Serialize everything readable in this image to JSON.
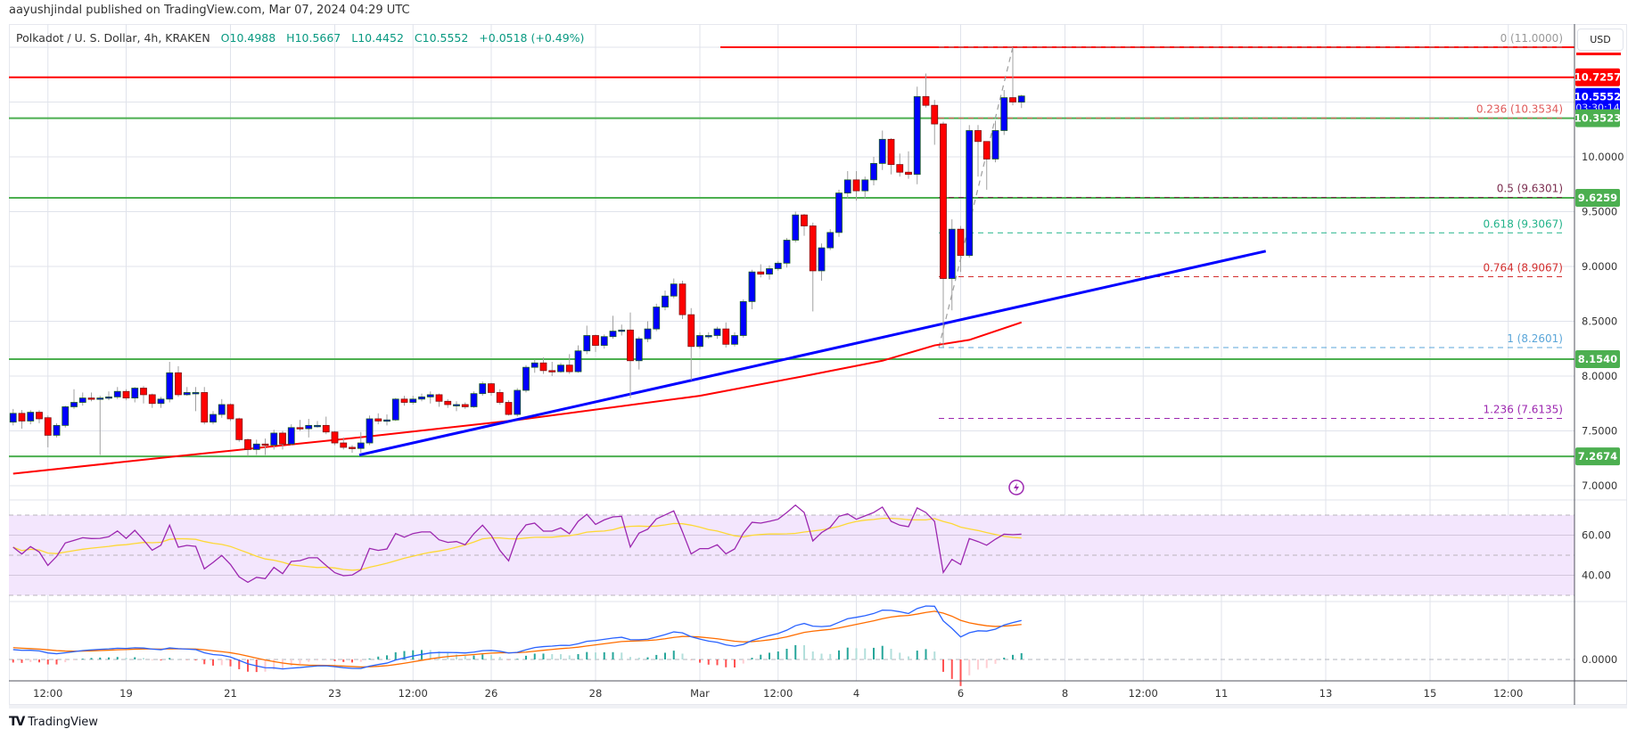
{
  "header": {
    "published": "aayushjindal published on TradingView.com, Mar 07, 2024 04:29 UTC",
    "symbol": "Polkadot / U. S. Dollar, 4h, KRAKEN",
    "open": "O10.4988",
    "high": "H10.5667",
    "low": "L10.4452",
    "close": "C10.5552",
    "change": "+0.0518 (+0.49%)"
  },
  "currency_button": "USD",
  "brand": "TradingView",
  "colors": {
    "up": "#0000ff",
    "down": "#ff0000",
    "support": "#4caf50",
    "resistance": "#ff0000",
    "trendline": "#0000ff",
    "ma": "#ff0000",
    "rsi": "#9c27b0",
    "rsi_ma": "#fdd835",
    "macd": "#2962ff",
    "signal": "#ff6d00",
    "hist_up": "#26a69a",
    "hist_down": "#ff5252"
  },
  "price_axis": {
    "ticks": [
      "10.0000",
      "9.5000",
      "9.0000",
      "8.5000",
      "8.0000",
      "7.5000",
      "7.0000"
    ],
    "grid_prices": [
      11.0,
      10.5,
      10.0,
      9.5,
      9.0,
      8.5,
      8.0,
      7.5,
      7.0
    ],
    "boxes": [
      {
        "value": "10.7257",
        "color": "#ff0000"
      },
      {
        "value": "10.5552",
        "color": "#0000ff",
        "countdown": "03:30:14"
      },
      {
        "value": "10.3523",
        "color": "#4caf50"
      },
      {
        "value": "9.6259",
        "color": "#4caf50"
      },
      {
        "value": "8.1540",
        "color": "#4caf50"
      },
      {
        "value": "7.2674",
        "color": "#4caf50"
      }
    ]
  },
  "horizontal_lines": [
    {
      "price": 11.0,
      "color": "#ff0000",
      "partial": true
    },
    {
      "price": 10.7257,
      "color": "#ff0000"
    },
    {
      "price": 10.3523,
      "color": "#4caf50"
    },
    {
      "price": 9.6259,
      "color": "#4caf50"
    },
    {
      "price": 8.154,
      "color": "#4caf50"
    },
    {
      "price": 7.2674,
      "color": "#4caf50"
    }
  ],
  "fib_levels": [
    {
      "label": "0 (11.0000)",
      "price": 11.0,
      "color": "#999999"
    },
    {
      "label": "0.236 (10.3534)",
      "price": 10.3534,
      "color": "#e05a5a"
    },
    {
      "label": "0.5 (9.6301)",
      "price": 9.6301,
      "color": "#7b2d4f"
    },
    {
      "label": "0.618 (9.3067)",
      "price": 9.3067,
      "color": "#22b38a"
    },
    {
      "label": "0.764 (8.9067)",
      "price": 8.9067,
      "color": "#d32f2f"
    },
    {
      "label": "1 (8.2601)",
      "price": 8.2601,
      "color": "#5aa6d9"
    },
    {
      "label": "1.236 (7.6135)",
      "price": 7.6135,
      "color": "#9c27b0"
    }
  ],
  "time_axis": [
    {
      "label": "12:00",
      "t": -12.5
    },
    {
      "label": "19",
      "t": -11
    },
    {
      "label": "21",
      "t": -9
    },
    {
      "label": "23",
      "t": -7
    },
    {
      "label": "12:00",
      "t": -5.5
    },
    {
      "label": "26",
      "t": -4
    },
    {
      "label": "28",
      "t": -2
    },
    {
      "label": "Mar",
      "t": 0
    },
    {
      "label": "12:00",
      "t": 1.5
    },
    {
      "label": "4",
      "t": 3
    },
    {
      "label": "6",
      "t": 5
    },
    {
      "label": "8",
      "t": 7
    },
    {
      "label": "12:00",
      "t": 8.5
    },
    {
      "label": "11",
      "t": 10
    },
    {
      "label": "13",
      "t": 12
    },
    {
      "label": "15",
      "t": 14
    },
    {
      "label": "12:00",
      "t": 15.5
    }
  ],
  "rsi_axis": [
    "60.00",
    "40.00"
  ],
  "macd_axis": "0.0000",
  "chart_data": {
    "type": "candlestick",
    "interval_hours": 4,
    "first_candle_t": -13.1667,
    "candles": [
      [
        7.58,
        7.7,
        7.55,
        7.66
      ],
      [
        7.66,
        7.69,
        7.52,
        7.59
      ],
      [
        7.59,
        7.69,
        7.56,
        7.67
      ],
      [
        7.67,
        7.69,
        7.57,
        7.61
      ],
      [
        7.62,
        7.64,
        7.35,
        7.46
      ],
      [
        7.46,
        7.57,
        7.44,
        7.55
      ],
      [
        7.55,
        7.73,
        7.53,
        7.72
      ],
      [
        7.72,
        7.88,
        7.7,
        7.76
      ],
      [
        7.76,
        7.85,
        7.73,
        7.8
      ],
      [
        7.8,
        7.85,
        7.77,
        7.79
      ],
      [
        7.79,
        7.82,
        7.28,
        7.8
      ],
      [
        7.8,
        7.86,
        7.78,
        7.81
      ],
      [
        7.81,
        7.9,
        7.79,
        7.86
      ],
      [
        7.86,
        7.88,
        7.78,
        7.8
      ],
      [
        7.8,
        7.9,
        7.76,
        7.89
      ],
      [
        7.89,
        7.91,
        7.75,
        7.83
      ],
      [
        7.83,
        7.84,
        7.71,
        7.75
      ],
      [
        7.75,
        7.81,
        7.71,
        7.79
      ],
      [
        7.79,
        8.13,
        7.76,
        8.03
      ],
      [
        8.03,
        8.09,
        7.81,
        7.83
      ],
      [
        7.83,
        7.9,
        7.82,
        7.85
      ],
      [
        7.85,
        7.9,
        7.68,
        7.85
      ],
      [
        7.85,
        7.9,
        7.56,
        7.58
      ],
      [
        7.58,
        7.68,
        7.56,
        7.65
      ],
      [
        7.65,
        7.79,
        7.62,
        7.74
      ],
      [
        7.74,
        7.75,
        7.59,
        7.61
      ],
      [
        7.61,
        7.62,
        7.4,
        7.42
      ],
      [
        7.42,
        7.43,
        7.27,
        7.33
      ],
      [
        7.33,
        7.42,
        7.28,
        7.38
      ],
      [
        7.38,
        7.43,
        7.28,
        7.37
      ],
      [
        7.37,
        7.51,
        7.33,
        7.48
      ],
      [
        7.48,
        7.5,
        7.33,
        7.38
      ],
      [
        7.38,
        7.56,
        7.37,
        7.53
      ],
      [
        7.53,
        7.6,
        7.5,
        7.52
      ],
      [
        7.52,
        7.61,
        7.44,
        7.55
      ],
      [
        7.55,
        7.59,
        7.53,
        7.55
      ],
      [
        7.55,
        7.63,
        7.47,
        7.49
      ],
      [
        7.49,
        7.5,
        7.37,
        7.39
      ],
      [
        7.39,
        7.44,
        7.33,
        7.35
      ],
      [
        7.35,
        7.37,
        7.3,
        7.34
      ],
      [
        7.34,
        7.49,
        7.3,
        7.39
      ],
      [
        7.39,
        7.64,
        7.37,
        7.61
      ],
      [
        7.61,
        7.66,
        7.56,
        7.59
      ],
      [
        7.59,
        7.65,
        7.55,
        7.6
      ],
      [
        7.6,
        7.8,
        7.59,
        7.79
      ],
      [
        7.79,
        7.82,
        7.73,
        7.76
      ],
      [
        7.76,
        7.82,
        7.74,
        7.79
      ],
      [
        7.79,
        7.84,
        7.77,
        7.81
      ],
      [
        7.81,
        7.86,
        7.75,
        7.83
      ],
      [
        7.83,
        7.84,
        7.72,
        7.77
      ],
      [
        7.77,
        7.79,
        7.71,
        7.74
      ],
      [
        7.74,
        7.77,
        7.68,
        7.74
      ],
      [
        7.74,
        7.76,
        7.7,
        7.72
      ],
      [
        7.72,
        7.86,
        7.71,
        7.84
      ],
      [
        7.84,
        7.95,
        7.82,
        7.93
      ],
      [
        7.93,
        7.94,
        7.82,
        7.85
      ],
      [
        7.85,
        7.88,
        7.74,
        7.76
      ],
      [
        7.76,
        7.78,
        7.64,
        7.65
      ],
      [
        7.65,
        7.89,
        7.63,
        7.87
      ],
      [
        7.87,
        8.1,
        7.85,
        8.08
      ],
      [
        8.08,
        8.15,
        8.03,
        8.12
      ],
      [
        8.12,
        8.17,
        8.02,
        8.05
      ],
      [
        8.05,
        8.13,
        8.0,
        8.04
      ],
      [
        8.04,
        8.12,
        8.03,
        8.1
      ],
      [
        8.1,
        8.2,
        8.02,
        8.04
      ],
      [
        8.04,
        8.28,
        8.03,
        8.23
      ],
      [
        8.23,
        8.46,
        8.2,
        8.37
      ],
      [
        8.37,
        8.38,
        8.22,
        8.28
      ],
      [
        8.28,
        8.38,
        8.25,
        8.36
      ],
      [
        8.36,
        8.55,
        8.34,
        8.41
      ],
      [
        8.41,
        8.47,
        8.37,
        8.42
      ],
      [
        8.42,
        8.58,
        7.8,
        8.14
      ],
      [
        8.14,
        8.36,
        8.06,
        8.34
      ],
      [
        8.34,
        8.5,
        8.31,
        8.43
      ],
      [
        8.43,
        8.66,
        8.41,
        8.63
      ],
      [
        8.63,
        8.78,
        8.6,
        8.73
      ],
      [
        8.73,
        8.89,
        8.71,
        8.84
      ],
      [
        8.84,
        8.87,
        8.52,
        8.56
      ],
      [
        8.56,
        8.62,
        7.96,
        8.27
      ],
      [
        8.27,
        8.4,
        8.25,
        8.37
      ],
      [
        8.37,
        8.4,
        8.34,
        8.37
      ],
      [
        8.37,
        8.45,
        8.34,
        8.43
      ],
      [
        8.43,
        8.49,
        8.26,
        8.29
      ],
      [
        8.29,
        8.4,
        8.27,
        8.37
      ],
      [
        8.37,
        8.7,
        8.35,
        8.68
      ],
      [
        8.68,
        8.97,
        8.61,
        8.95
      ],
      [
        8.95,
        9.02,
        8.9,
        8.93
      ],
      [
        8.93,
        9.01,
        8.88,
        8.98
      ],
      [
        8.98,
        9.05,
        8.96,
        9.03
      ],
      [
        9.03,
        9.26,
        8.99,
        9.24
      ],
      [
        9.24,
        9.5,
        9.22,
        9.47
      ],
      [
        9.47,
        9.48,
        9.28,
        9.37
      ],
      [
        9.37,
        9.4,
        8.59,
        8.96
      ],
      [
        8.96,
        9.21,
        8.87,
        9.17
      ],
      [
        9.17,
        9.34,
        9.15,
        9.31
      ],
      [
        9.31,
        9.7,
        9.27,
        9.67
      ],
      [
        9.67,
        9.87,
        9.62,
        9.79
      ],
      [
        9.79,
        9.87,
        9.6,
        9.69
      ],
      [
        9.69,
        9.82,
        9.62,
        9.79
      ],
      [
        9.79,
        10.0,
        9.74,
        9.94
      ],
      [
        9.94,
        10.24,
        9.88,
        10.16
      ],
      [
        10.16,
        10.17,
        9.84,
        9.93
      ],
      [
        9.93,
        10.03,
        9.82,
        9.86
      ],
      [
        9.86,
        10.05,
        9.8,
        9.84
      ],
      [
        9.84,
        10.64,
        9.75,
        10.55
      ],
      [
        10.55,
        10.76,
        10.45,
        10.47
      ],
      [
        10.47,
        10.52,
        10.11,
        10.3
      ],
      [
        10.3,
        10.32,
        8.26,
        8.89
      ],
      [
        8.89,
        9.43,
        8.6,
        9.34
      ],
      [
        9.34,
        9.37,
        8.95,
        9.1
      ],
      [
        9.1,
        10.29,
        9.08,
        10.24
      ],
      [
        10.24,
        10.29,
        9.82,
        10.14
      ],
      [
        10.14,
        10.14,
        9.7,
        9.98
      ],
      [
        9.98,
        10.33,
        9.95,
        10.24
      ],
      [
        10.24,
        10.61,
        10.2,
        10.54
      ],
      [
        10.54,
        11.0,
        10.47,
        10.5
      ],
      [
        10.4988,
        10.5667,
        10.4452,
        10.5552
      ]
    ],
    "ma200": [
      [
        0,
        7.11
      ],
      [
        19,
        7.27
      ],
      [
        41,
        7.45
      ],
      [
        58,
        7.6
      ],
      [
        79,
        7.82
      ],
      [
        91,
        8.0
      ],
      [
        100,
        8.14
      ],
      [
        106,
        8.28
      ],
      [
        110,
        8.33
      ],
      [
        116,
        8.49
      ]
    ],
    "trendline": [
      [
        -6.53,
        7.28
      ],
      [
        10.85,
        9.14
      ]
    ],
    "rsi": [
      54.0,
      50.6,
      54.3,
      51.6,
      44.9,
      49.4,
      56.1,
      57.4,
      58.7,
      58.3,
      58.4,
      59.2,
      62.1,
      58.4,
      62.4,
      57.6,
      52.5,
      55.0,
      65.0,
      54.0,
      54.9,
      54.4,
      43.2,
      46.4,
      49.9,
      45.4,
      39.2,
      36.5,
      39.0,
      38.3,
      43.9,
      40.8,
      46.9,
      47.3,
      48.7,
      48.7,
      44.9,
      41.3,
      39.8,
      40.1,
      42.7,
      53.4,
      52.4,
      53.1,
      60.8,
      59.0,
      60.8,
      61.6,
      61.6,
      57.7,
      56.4,
      56.8,
      55.2,
      60.7,
      65.0,
      59.9,
      52.4,
      47.2,
      59.5,
      65.1,
      66.0,
      62.0,
      62.0,
      63.6,
      60.7,
      66.9,
      70.4,
      65.4,
      67.6,
      69.1,
      69.4,
      54.1,
      61.0,
      63.0,
      68.1,
      70.1,
      72.1,
      61.7,
      50.6,
      53.3,
      53.3,
      55.2,
      50.7,
      53.1,
      61.0,
      66.4,
      66.0,
      66.9,
      67.9,
      71.3,
      75.0,
      71.3,
      57.1,
      61.3,
      63.9,
      69.4,
      70.6,
      67.9,
      69.6,
      71.3,
      74.0,
      66.9,
      65.0,
      64.2,
      73.6,
      71.3,
      66.9,
      41.4,
      47.9,
      45.4,
      58.3,
      56.8,
      55.0,
      58.0,
      60.5,
      60.2,
      60.5
    ],
    "rsi_band": [
      30,
      70
    ],
    "macd_params": [
      12,
      26,
      9
    ]
  }
}
